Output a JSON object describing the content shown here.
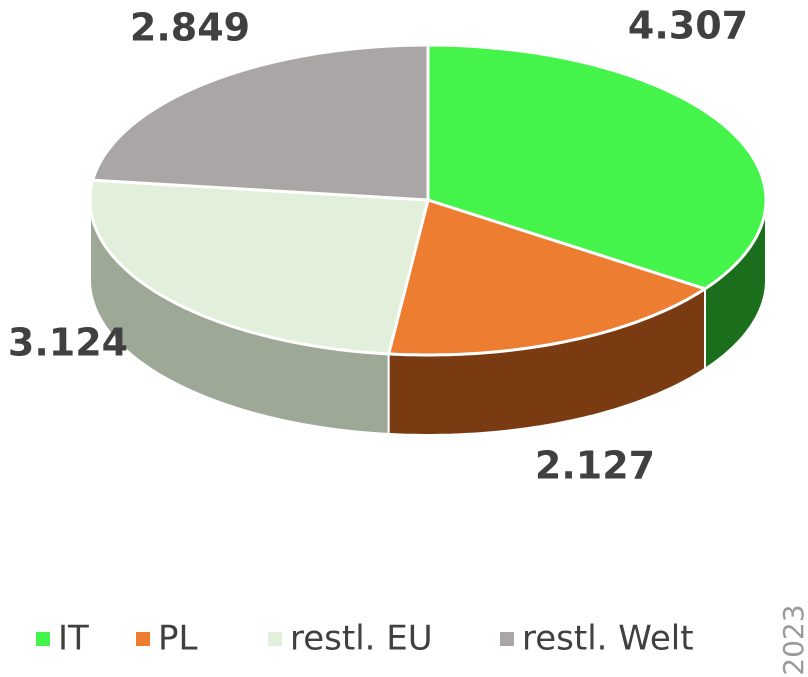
{
  "chart_data": {
    "type": "pie3d",
    "categories": [
      "IT",
      "PL",
      "restl. EU",
      "restl. Welt"
    ],
    "values": [
      4.307,
      2.127,
      3.124,
      2.849
    ],
    "colors": [
      "#44f44a",
      "#ed7d31",
      "#e2efda",
      "#aaa6a6"
    ],
    "side_colors": [
      "#1b6e1b",
      "#7a3a12",
      "#9ea896",
      "#8a8686"
    ],
    "annotation": "2023"
  }
}
